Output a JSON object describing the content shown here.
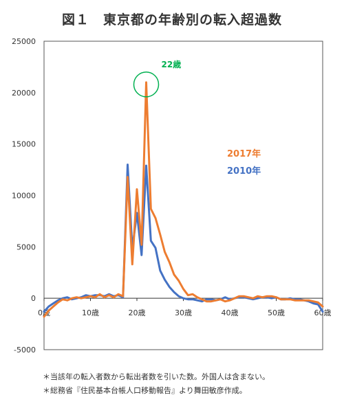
{
  "title": "図１　東京都の年齢別の転入超過数",
  "notes": [
    "＊当該年の転入者数から転出者数を引いた数。外国人は含まない。",
    "＊総務省『住民基本台帳人口移動報告』より舞田敏彦作成。"
  ],
  "chart_data": {
    "type": "line",
    "ylim": [
      -5000,
      25000
    ],
    "yticks": [
      -5000,
      0,
      5000,
      10000,
      15000,
      20000,
      25000
    ],
    "xlim": [
      0,
      60
    ],
    "xticks": [
      {
        "value": 0,
        "label": "0歳"
      },
      {
        "value": 10,
        "label": "10歳"
      },
      {
        "value": 20,
        "label": "20歳"
      },
      {
        "value": 30,
        "label": "30歳"
      },
      {
        "value": 40,
        "label": "40歳"
      },
      {
        "value": 50,
        "label": "50歳"
      },
      {
        "value": 60,
        "label": "60歳"
      }
    ],
    "x": [
      0,
      1,
      2,
      3,
      4,
      5,
      6,
      7,
      8,
      9,
      10,
      11,
      12,
      13,
      14,
      15,
      16,
      17,
      18,
      19,
      20,
      21,
      22,
      23,
      24,
      25,
      26,
      27,
      28,
      29,
      30,
      31,
      32,
      33,
      34,
      35,
      36,
      37,
      38,
      39,
      40,
      41,
      42,
      43,
      44,
      45,
      46,
      47,
      48,
      49,
      50,
      51,
      52,
      53,
      54,
      55,
      56,
      57,
      58,
      59,
      60
    ],
    "series": [
      {
        "name": "2017年",
        "color": "#ed7d31",
        "values": [
          -1800,
          -1200,
          -800,
          -400,
          -100,
          -200,
          0,
          100,
          0,
          100,
          200,
          100,
          400,
          100,
          300,
          100,
          400,
          200,
          11800,
          3300,
          10600,
          5200,
          21000,
          8700,
          7800,
          6200,
          4500,
          3500,
          2300,
          1700,
          900,
          300,
          400,
          100,
          -100,
          -300,
          -300,
          -200,
          -100,
          -300,
          -200,
          0,
          200,
          200,
          100,
          0,
          200,
          100,
          200,
          200,
          100,
          -100,
          -100,
          -100,
          -200,
          -200,
          -200,
          -200,
          -300,
          -400,
          -800
        ]
      },
      {
        "name": "2010年",
        "color": "#4472c4",
        "values": [
          -1300,
          -800,
          -500,
          -200,
          0,
          100,
          -100,
          0,
          100,
          300,
          200,
          300,
          300,
          200,
          400,
          200,
          300,
          100,
          13000,
          4800,
          8300,
          4200,
          12900,
          5600,
          4900,
          2700,
          1800,
          1100,
          600,
          200,
          0,
          -100,
          -100,
          -200,
          -300,
          -100,
          -100,
          -200,
          -100,
          100,
          -100,
          0,
          100,
          100,
          0,
          -100,
          0,
          100,
          100,
          0,
          100,
          -100,
          -100,
          0,
          -100,
          -100,
          -200,
          -300,
          -500,
          -600,
          -1300
        ]
      }
    ],
    "annotation": {
      "label": "22歳",
      "x": 22,
      "y": 21000,
      "color": "#00b050"
    }
  }
}
